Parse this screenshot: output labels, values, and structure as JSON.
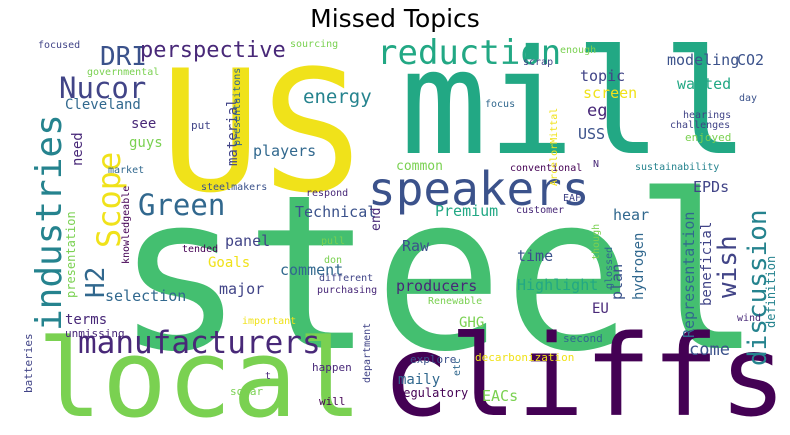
{
  "title": "Missed Topics",
  "words": {
    "steel": "steel",
    "us": "US",
    "mill": "mill",
    "local": "local",
    "cliffs": "cliffs",
    "speakers": "speakers",
    "reduction": "reduction",
    "industries": "industries",
    "scope": "Scope",
    "manufacturers": "manufacturers",
    "nucor": "Nucor",
    "dri": "DRI",
    "perspective": "perspective",
    "green": "Green",
    "h2": "H2",
    "discussion": "discussion",
    "wish": "wish",
    "energy": "energy",
    "modeling": "modeling",
    "co2": "CO2",
    "screen": "screen",
    "topic": "topic",
    "wanted": "wanted",
    "eg": "eg",
    "uss": "USS",
    "cleveland": "Cleveland",
    "see": "see",
    "need": "need",
    "guys": "guys",
    "players": "players",
    "material": "material",
    "put": "put",
    "technical": "Technical",
    "premium": "Premium",
    "epds": "EPDs",
    "hear": "hear",
    "raw": "Raw",
    "time": "time",
    "panel": "panel",
    "goals": "Goals",
    "comment": "comment",
    "major": "major",
    "selection": "selection",
    "presentation": "presentation",
    "producers": "producers",
    "highlight": "Highlight",
    "representation": "Representation",
    "beneficial": "beneficial",
    "hydrogen": "hydrogen",
    "plan": "plan",
    "eu": "EU",
    "come": "come",
    "definition": "definition",
    "terms": "terms",
    "ghg": "GHG",
    "maily": "maily",
    "eacs": "EACs",
    "regulatory": "Regulatory",
    "will": "will",
    "explore": "explore",
    "decarbonization": "decarbonization",
    "enjoyed": "enjoyed",
    "second": "second",
    "department": "department",
    "happen": "happen",
    "solar": "solar",
    "batteries": "batteries",
    "unmissing": "unmissing",
    "important": "important",
    "t": "t",
    "focused": "focused",
    "governmental": "governmental",
    "sourcing": "sourcing",
    "enough": "enough",
    "scrap": "scrap",
    "focus": "focus",
    "hearings": "hearings",
    "challenges": "challenges",
    "day": "day",
    "presentaitons": "presentaitons",
    "arcelormittal": "ArcelorMittal",
    "market": "market",
    "steelmakers": "steelmakers",
    "knowledgeable": "knowledgeable",
    "respond": "respond",
    "conventional": "conventional",
    "sustainability": "sustainability",
    "common": "common",
    "eaf": "EAF",
    "customer": "customer",
    "tended": "tended",
    "don": "don",
    "pull": "pull",
    "different": "different",
    "purchasing": "purchasing",
    "renewable": "Renewable",
    "though": "though",
    "glossed": "glossed",
    "wind": "wind",
    "etc": "etc",
    "end": "end",
    "n": "N"
  },
  "colors": {
    "yellow": "#f0e21a",
    "light_green": "#7ad151",
    "green": "#44bf70",
    "teal_green": "#22a884",
    "teal": "#2a9d8f",
    "teal_blue": "#25838e",
    "blue": "#31688e",
    "indigo": "#3b528b",
    "dark_blue": "#414487",
    "purple": "#482878",
    "dark_purple": "#440154"
  }
}
